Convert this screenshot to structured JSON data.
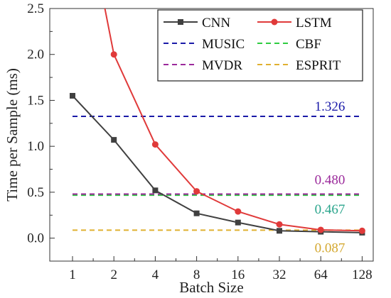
{
  "chart_data": {
    "type": "line",
    "xlabel": "Batch Size",
    "ylabel": "Time per Sample (ms)",
    "x_scale": "log2",
    "ylim": [
      -0.25,
      2.5
    ],
    "y_ticks": [
      0.0,
      0.5,
      1.0,
      1.5,
      2.0,
      2.5
    ],
    "y_tick_labels": [
      "0.0",
      "0.5",
      "1.0",
      "1.5",
      "2.0",
      "2.5"
    ],
    "categories": [
      "1",
      "2",
      "4",
      "8",
      "16",
      "32",
      "64",
      "128"
    ],
    "x": [
      1,
      2,
      4,
      8,
      16,
      32,
      64,
      128
    ],
    "legend_position": "top-right",
    "grid": false,
    "series": [
      {
        "name": "CNN",
        "style": "line-marker",
        "marker": "square",
        "color": "#404040",
        "values": [
          1.55,
          1.07,
          0.52,
          0.27,
          0.17,
          0.08,
          0.07,
          0.06
        ]
      },
      {
        "name": "LSTM",
        "style": "line-marker",
        "marker": "circle",
        "color": "#e03a3a",
        "line_start": {
          "x": 1.72,
          "y": 2.5
        },
        "values": [
          null,
          2.0,
          1.02,
          0.51,
          0.29,
          0.15,
          0.09,
          0.08
        ]
      },
      {
        "name": "MUSIC",
        "style": "dashed",
        "color": "#1a1aa8",
        "values": [
          1.326,
          1.326,
          1.326,
          1.326,
          1.326,
          1.326,
          1.326,
          1.326
        ]
      },
      {
        "name": "CBF",
        "style": "dashed",
        "color": "#2ecc40",
        "values": [
          0.467,
          0.467,
          0.467,
          0.467,
          0.467,
          0.467,
          0.467,
          0.467
        ]
      },
      {
        "name": "MVDR",
        "style": "dashed",
        "color": "#9b2a9b",
        "values": [
          0.48,
          0.48,
          0.48,
          0.48,
          0.48,
          0.48,
          0.48,
          0.48
        ]
      },
      {
        "name": "ESPRIT",
        "style": "dashed",
        "color": "#e0b030",
        "values": [
          0.087,
          0.087,
          0.087,
          0.087,
          0.087,
          0.087,
          0.087,
          0.087
        ]
      }
    ],
    "annotations": [
      {
        "text": "1.326",
        "value": 1.326,
        "color": "#1a1aa8"
      },
      {
        "text": "0.480",
        "value": 0.48,
        "color": "#9b2a9b"
      },
      {
        "text": "0.467",
        "value": 0.467,
        "color": "#2aa58c"
      },
      {
        "text": "0.087",
        "value": 0.087,
        "color": "#d4a830"
      }
    ]
  }
}
